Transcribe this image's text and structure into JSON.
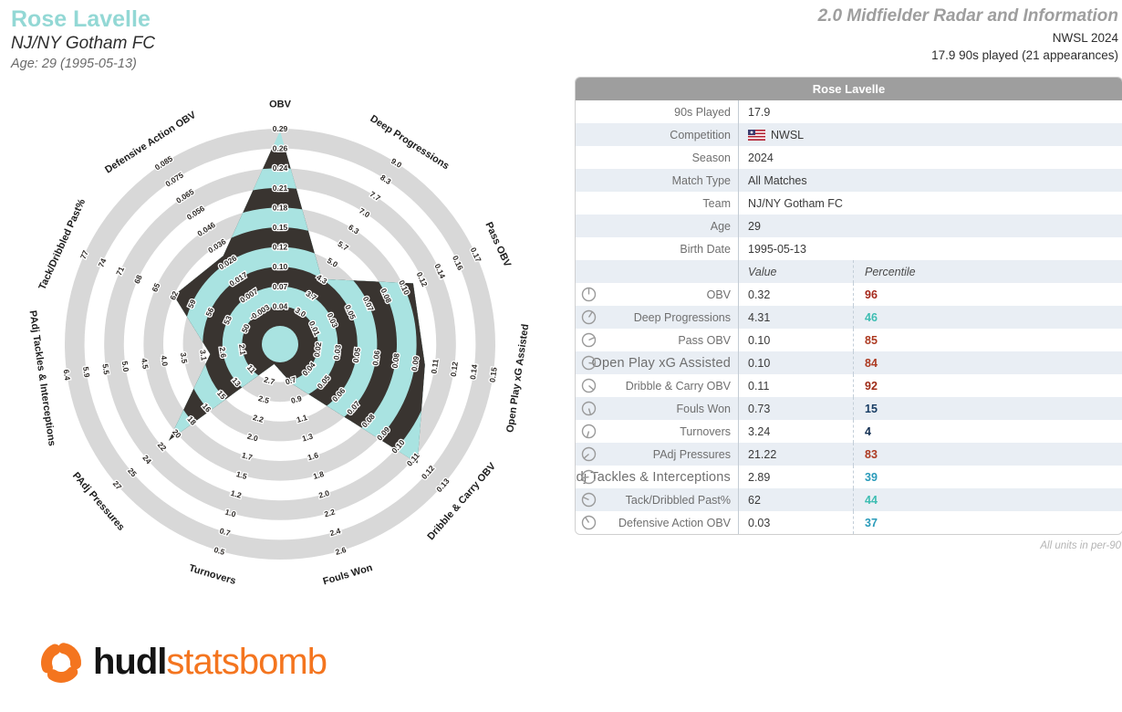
{
  "header": {
    "player_name": "Rose Lavelle",
    "team": "NJ/NY Gotham FC",
    "age_line": "Age: 29 (1995-05-13)",
    "report_title": "2.0 Midfielder Radar and Information",
    "season_line": "NWSL 2024",
    "minutes_line": "17.9 90s played (21 appearances)"
  },
  "table": {
    "title": "Rose Lavelle",
    "info_rows": [
      {
        "label": "90s Played",
        "value": "17.9"
      },
      {
        "label": "Competition",
        "value": "NWSL",
        "flag": "us-flag"
      },
      {
        "label": "Season",
        "value": "2024"
      },
      {
        "label": "Match Type",
        "value": "All Matches"
      },
      {
        "label": "Team",
        "value": "NJ/NY Gotham FC"
      },
      {
        "label": "Age",
        "value": "29"
      },
      {
        "label": "Birth Date",
        "value": "1995-05-13"
      }
    ],
    "col_headers": {
      "value": "Value",
      "percentile": "Percentile"
    },
    "units_note": "All units in per-90"
  },
  "colors": {
    "accent_teal": "#93d8d5",
    "radar_fill_teal": "#a9e3e1",
    "radar_fill_dark": "#393430",
    "radar_ring_gray": "#d8d8d8",
    "table_header_bg": "#9e9e9e",
    "row_alt_bg": "#e9eef4",
    "logo_orange": "#f4751f"
  },
  "chart_data": {
    "type": "radar",
    "title": "2.0 Midfielder Radar and Information",
    "player": "Rose Lavelle",
    "n_rings": 10,
    "axes": [
      {
        "label": "OBV",
        "value": "0.32",
        "percentile": 96,
        "pct_color": "#a5281b",
        "ticks": [
          "0.04",
          "0.07",
          "0.10",
          "0.12",
          "0.15",
          "0.18",
          "0.21",
          "0.24",
          "0.26",
          "0.29"
        ],
        "k": 9.9,
        "big": false
      },
      {
        "label": "Deep Progressions",
        "value": "4.31",
        "percentile": 46,
        "pct_color": "#3dbdb2",
        "ticks": [
          "3.0",
          "3.7",
          "4.3",
          "5.0",
          "5.7",
          "6.3",
          "7.0",
          "7.7",
          "8.3",
          "9.0"
        ],
        "k": 3.0,
        "big": false
      },
      {
        "label": "Pass OBV",
        "value": "0.10",
        "percentile": 85,
        "pct_color": "#ad3a21",
        "ticks": [
          "0.01",
          "0.03",
          "0.05",
          "0.07",
          "0.08",
          "0.10",
          "0.12",
          "0.14",
          "0.16",
          "0.17"
        ],
        "k": 6.5,
        "big": false
      },
      {
        "label": "Open Play xG Assisted",
        "value": "0.10",
        "percentile": 84,
        "pct_color": "#ad3a21",
        "ticks": [
          "0.02",
          "0.03",
          "0.05",
          "0.06",
          "0.08",
          "0.09",
          "0.11",
          "0.12",
          "0.14",
          "0.15"
        ],
        "k": 6.5,
        "big": true
      },
      {
        "label": "Dribble & Carry OBV",
        "value": "0.11",
        "percentile": 92,
        "pct_color": "#9e2b17",
        "ticks": [
          "0.04",
          "0.05",
          "0.06",
          "0.07",
          "0.08",
          "0.09",
          "0.10",
          "0.11",
          "0.12",
          "0.13"
        ],
        "k": 8.3,
        "big": false
      },
      {
        "label": "Fouls Won",
        "value": "0.73",
        "percentile": 15,
        "pct_color": "#173c63",
        "ticks": [
          "0.7",
          "0.9",
          "1.1",
          "1.3",
          "1.6",
          "1.8",
          "2.0",
          "2.2",
          "2.4",
          "2.6"
        ],
        "k": 1.15,
        "big": false
      },
      {
        "label": "Turnovers",
        "value": "3.24",
        "percentile": 4,
        "pct_color": "#122f52",
        "ticks": [
          "2.7",
          "2.5",
          "2.2",
          "2.0",
          "1.7",
          "1.5",
          "1.2",
          "1.0",
          "0.7",
          "0.5"
        ],
        "k": 0.12,
        "big": false
      },
      {
        "label": "PAdj Pressures",
        "value": "21.22",
        "percentile": 83,
        "pct_color": "#ad3a21",
        "ticks": [
          "11",
          "13",
          "15",
          "16",
          "18",
          "20",
          "22",
          "24",
          "25",
          "27"
        ],
        "k": 6.55,
        "big": false
      },
      {
        "label": "PAdj Tackles & Interceptions",
        "value": "2.89",
        "percentile": 39,
        "pct_color": "#2a9bba",
        "ticks": [
          "2.1",
          "2.6",
          "3.1",
          "3.5",
          "4.0",
          "4.5",
          "5.0",
          "5.5",
          "5.9",
          "6.4"
        ],
        "k": 2.65,
        "big": true
      },
      {
        "label": "Tack/Dribbled Past%",
        "value": "62",
        "percentile": 44,
        "pct_color": "#3dbdb2",
        "ticks": [
          "50",
          "53",
          "56",
          "59",
          "62",
          "65",
          "68",
          "71",
          "74",
          "77"
        ],
        "k": 5.0,
        "big": false
      },
      {
        "label": "Defensive Action OBV",
        "value": "0.03",
        "percentile": 37,
        "pct_color": "#2a9bba",
        "ticks": [
          "-0.003",
          "0.007",
          "0.017",
          "0.026",
          "0.036",
          "0.046",
          "0.056",
          "0.065",
          "0.075",
          "0.085"
        ],
        "k": 4.4,
        "big": false
      }
    ]
  },
  "logo": {
    "hudl": "hudl",
    "statsbomb": "statsbomb"
  }
}
